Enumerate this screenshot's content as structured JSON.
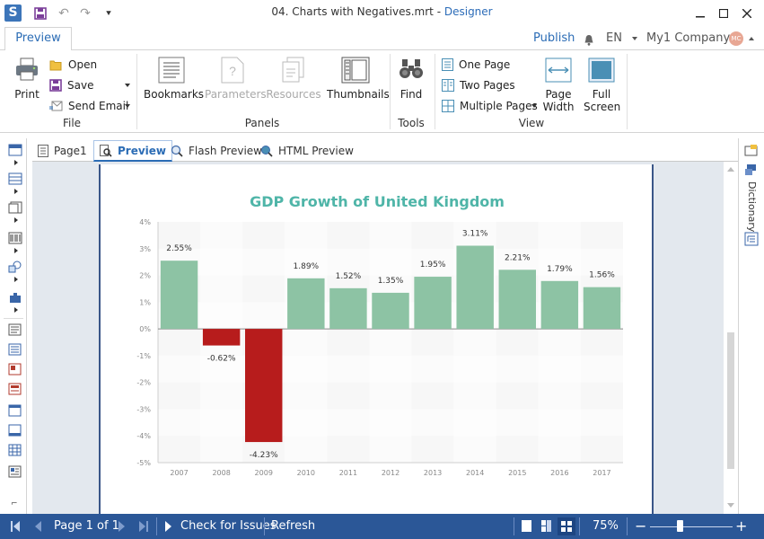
{
  "titlebar": {
    "file_name": "04. Charts with Negatives.mrt",
    "separator": "-",
    "app_name": "Designer"
  },
  "tabs": {
    "active": "Preview",
    "publish": "Publish",
    "language": "EN",
    "company": "My1 Company",
    "avatar_initials": "MC"
  },
  "ribbon": {
    "file": {
      "print": "Print",
      "open": "Open",
      "save": "Save",
      "send_email": "Send Email",
      "group": "File"
    },
    "panels": {
      "bookmarks": "Bookmarks",
      "parameters": "Parameters",
      "resources": "Resources",
      "thumbnails": "Thumbnails",
      "group": "Panels"
    },
    "tools": {
      "find": "Find",
      "group": "Tools"
    },
    "view": {
      "one_page": "One Page",
      "two_pages": "Two Pages",
      "multiple_pages": "Multiple Pages",
      "page_width_1": "Page",
      "page_width_2": "Width",
      "full_screen_1": "Full",
      "full_screen_2": "Screen",
      "group": "View"
    }
  },
  "page_tabs": [
    "Page1",
    "Preview",
    "Flash Preview",
    "HTML Preview"
  ],
  "right_panel": {
    "dictionary": "Dictionary"
  },
  "chart_data": {
    "type": "bar",
    "title": "GDP Growth of United Kingdom",
    "categories": [
      "2007",
      "2008",
      "2009",
      "2010",
      "2011",
      "2012",
      "2013",
      "2014",
      "2015",
      "2016",
      "2017"
    ],
    "values": [
      2.55,
      -0.62,
      -4.23,
      1.89,
      1.52,
      1.35,
      1.95,
      3.11,
      2.21,
      1.79,
      1.56
    ],
    "value_labels": [
      "2.55%",
      "-0.62%",
      "-4.23%",
      "1.89%",
      "1.52%",
      "1.35%",
      "1.95%",
      "3.11%",
      "2.21%",
      "1.79%",
      "1.56%"
    ],
    "y_ticks": [
      "4%",
      "3%",
      "2%",
      "1%",
      "0%",
      "-1%",
      "-2%",
      "-3%",
      "-4%",
      "-5%"
    ],
    "ylim": [
      -5,
      4
    ],
    "positive_color": "#8dc3a4",
    "negative_color": "#b71c1c",
    "title_color": "#4fb5a8",
    "grid": true
  },
  "status": {
    "page_info": "Page 1 of 1",
    "check_issues": "Check for Issues",
    "refresh": "Refresh",
    "zoom": "75%",
    "zoom_minus": "−",
    "zoom_plus": "+"
  }
}
